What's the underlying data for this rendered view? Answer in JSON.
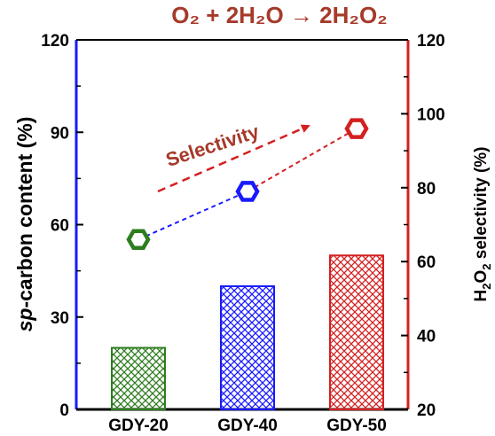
{
  "chart_data": {
    "type": "bar",
    "title": "O₂ + 2H₂O → 2H₂O₂",
    "categories": [
      "GDY-20",
      "GDY-40",
      "GDY-50"
    ],
    "series": [
      {
        "axis": "left",
        "kind": "bar",
        "values": [
          20,
          40,
          50
        ],
        "colors": [
          "#2e7d1f",
          "#1a1aff",
          "#d42020"
        ]
      },
      {
        "axis": "right",
        "kind": "line",
        "values": [
          66,
          79,
          96
        ],
        "colors": [
          "#2e7d1f",
          "#1a1aff",
          "#d42020"
        ]
      }
    ],
    "left_axis": {
      "label_italic": "sp",
      "label_rest": "-carbon content (%)",
      "ylim": [
        0,
        120
      ],
      "ticks": [
        "0",
        "30",
        "60",
        "90",
        "120"
      ],
      "color": "#1a1aff"
    },
    "right_axis": {
      "label_pre": "H",
      "label_sub1": "2",
      "label_mid": "O",
      "label_sub2": "2",
      "label_post": " selectivity (%)",
      "ylim": [
        20,
        120
      ],
      "ticks": [
        "20",
        "40",
        "60",
        "80",
        "100",
        "120"
      ],
      "color": "#d42020"
    },
    "annotation": {
      "text": "Selectivity",
      "color": "#a63a2a"
    },
    "title_color": "#a63a2a",
    "grid": false,
    "legend": "none"
  }
}
